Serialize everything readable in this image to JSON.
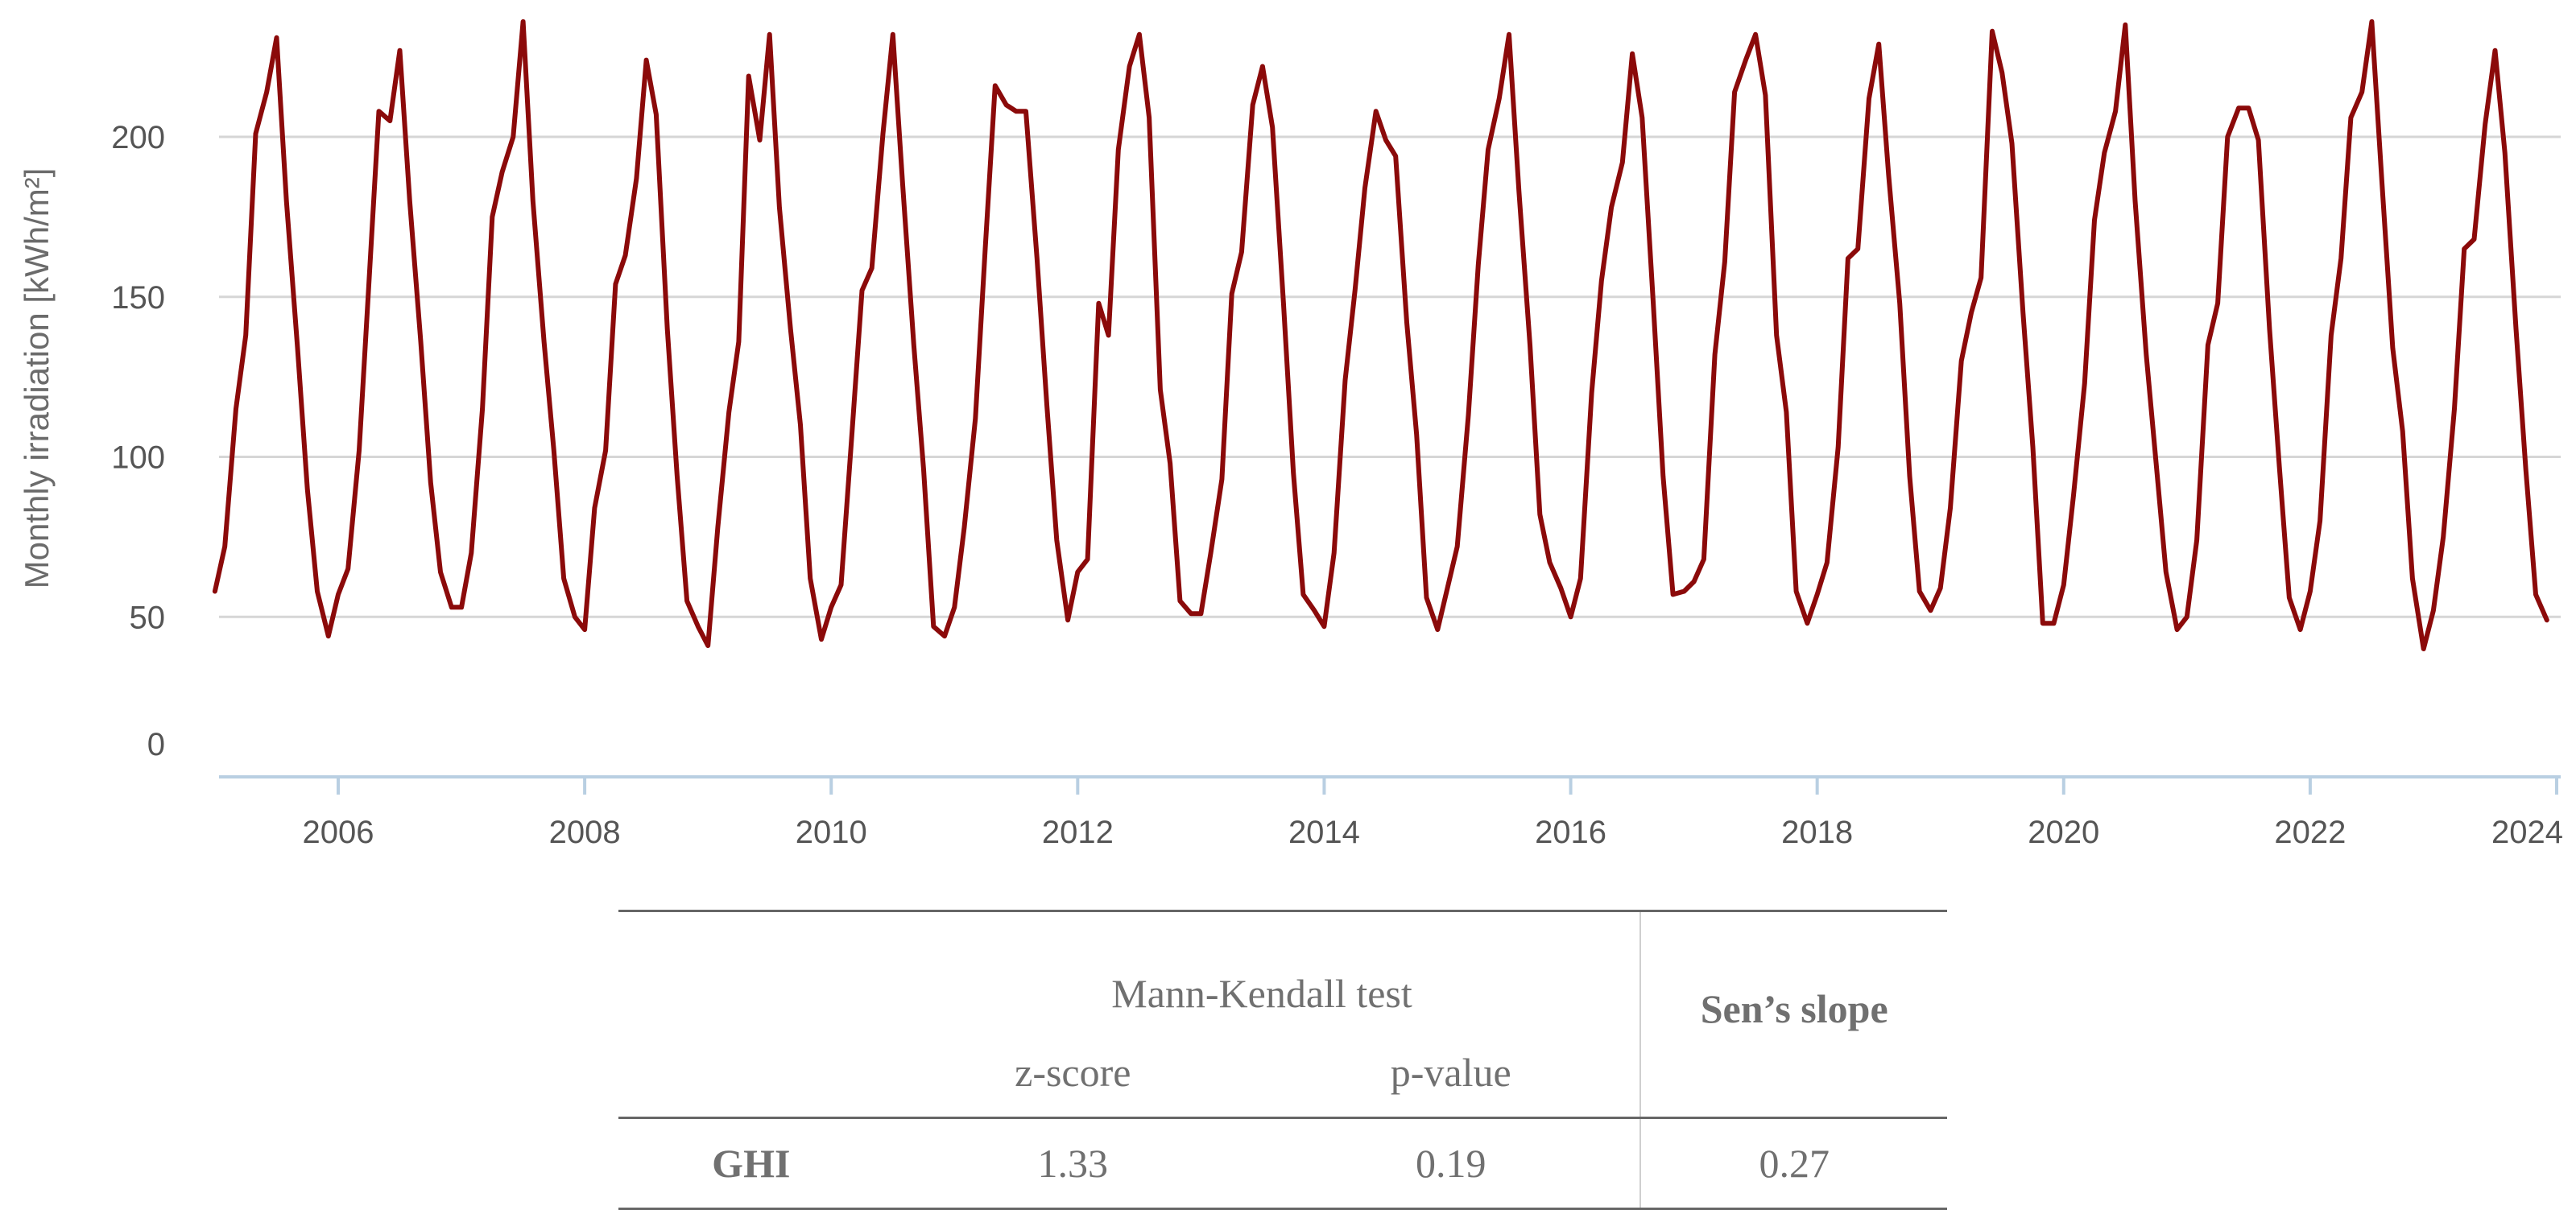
{
  "chart_data": {
    "type": "line",
    "title": "",
    "xlabel": "",
    "ylabel": "Monthly irradiation [kWh/m²]",
    "ylim": [
      0,
      240
    ],
    "yticks": [
      0,
      50,
      100,
      150,
      200
    ],
    "xlim": [
      2005.0,
      2024.1
    ],
    "xticks": [
      2006,
      2008,
      2010,
      2012,
      2014,
      2016,
      2018,
      2020,
      2022,
      2024
    ],
    "grid": true,
    "legend": "none",
    "line_color": "#8b0a0a",
    "series": [
      {
        "values": [
          {
            "x": 2005.0,
            "y": 58
          },
          {
            "x": 2005.08,
            "y": 72
          },
          {
            "x": 2005.17,
            "y": 115
          },
          {
            "x": 2005.25,
            "y": 138
          },
          {
            "x": 2005.33,
            "y": 201
          },
          {
            "x": 2005.42,
            "y": 214
          },
          {
            "x": 2005.5,
            "y": 231
          },
          {
            "x": 2005.58,
            "y": 180
          },
          {
            "x": 2005.67,
            "y": 134
          },
          {
            "x": 2005.75,
            "y": 90
          },
          {
            "x": 2005.83,
            "y": 58
          },
          {
            "x": 2005.92,
            "y": 44
          },
          {
            "x": 2006.0,
            "y": 57
          },
          {
            "x": 2006.08,
            "y": 65
          },
          {
            "x": 2006.17,
            "y": 102
          },
          {
            "x": 2006.25,
            "y": 155
          },
          {
            "x": 2006.33,
            "y": 208
          },
          {
            "x": 2006.42,
            "y": 205
          },
          {
            "x": 2006.5,
            "y": 227
          },
          {
            "x": 2006.58,
            "y": 180
          },
          {
            "x": 2006.67,
            "y": 136
          },
          {
            "x": 2006.75,
            "y": 92
          },
          {
            "x": 2006.83,
            "y": 64
          },
          {
            "x": 2006.92,
            "y": 53
          },
          {
            "x": 2007.0,
            "y": 53
          },
          {
            "x": 2007.08,
            "y": 70
          },
          {
            "x": 2007.17,
            "y": 115
          },
          {
            "x": 2007.25,
            "y": 175
          },
          {
            "x": 2007.33,
            "y": 189
          },
          {
            "x": 2007.42,
            "y": 200
          },
          {
            "x": 2007.5,
            "y": 236
          },
          {
            "x": 2007.58,
            "y": 180
          },
          {
            "x": 2007.67,
            "y": 136
          },
          {
            "x": 2007.75,
            "y": 102
          },
          {
            "x": 2007.83,
            "y": 62
          },
          {
            "x": 2007.92,
            "y": 50
          },
          {
            "x": 2008.0,
            "y": 46
          },
          {
            "x": 2008.08,
            "y": 84
          },
          {
            "x": 2008.17,
            "y": 102
          },
          {
            "x": 2008.25,
            "y": 154
          },
          {
            "x": 2008.33,
            "y": 163
          },
          {
            "x": 2008.42,
            "y": 187
          },
          {
            "x": 2008.5,
            "y": 224
          },
          {
            "x": 2008.58,
            "y": 207
          },
          {
            "x": 2008.67,
            "y": 140
          },
          {
            "x": 2008.75,
            "y": 94
          },
          {
            "x": 2008.83,
            "y": 55
          },
          {
            "x": 2008.92,
            "y": 47
          },
          {
            "x": 2009.0,
            "y": 41
          },
          {
            "x": 2009.08,
            "y": 78
          },
          {
            "x": 2009.17,
            "y": 114
          },
          {
            "x": 2009.25,
            "y": 136
          },
          {
            "x": 2009.33,
            "y": 219
          },
          {
            "x": 2009.42,
            "y": 199
          },
          {
            "x": 2009.5,
            "y": 232
          },
          {
            "x": 2009.58,
            "y": 178
          },
          {
            "x": 2009.67,
            "y": 140
          },
          {
            "x": 2009.75,
            "y": 110
          },
          {
            "x": 2009.83,
            "y": 62
          },
          {
            "x": 2009.92,
            "y": 43
          },
          {
            "x": 2010.0,
            "y": 53
          },
          {
            "x": 2010.08,
            "y": 60
          },
          {
            "x": 2010.17,
            "y": 108
          },
          {
            "x": 2010.25,
            "y": 152
          },
          {
            "x": 2010.33,
            "y": 159
          },
          {
            "x": 2010.42,
            "y": 201
          },
          {
            "x": 2010.5,
            "y": 232
          },
          {
            "x": 2010.58,
            "y": 185
          },
          {
            "x": 2010.67,
            "y": 135
          },
          {
            "x": 2010.75,
            "y": 96
          },
          {
            "x": 2010.83,
            "y": 47
          },
          {
            "x": 2010.92,
            "y": 44
          },
          {
            "x": 2011.0,
            "y": 53
          },
          {
            "x": 2011.08,
            "y": 78
          },
          {
            "x": 2011.17,
            "y": 112
          },
          {
            "x": 2011.25,
            "y": 165
          },
          {
            "x": 2011.33,
            "y": 216
          },
          {
            "x": 2011.42,
            "y": 210
          },
          {
            "x": 2011.5,
            "y": 208
          },
          {
            "x": 2011.58,
            "y": 208
          },
          {
            "x": 2011.67,
            "y": 162
          },
          {
            "x": 2011.75,
            "y": 116
          },
          {
            "x": 2011.83,
            "y": 74
          },
          {
            "x": 2011.92,
            "y": 49
          },
          {
            "x": 2012.0,
            "y": 64
          },
          {
            "x": 2012.08,
            "y": 68
          },
          {
            "x": 2012.17,
            "y": 148
          },
          {
            "x": 2012.25,
            "y": 138
          },
          {
            "x": 2012.33,
            "y": 196
          },
          {
            "x": 2012.42,
            "y": 222
          },
          {
            "x": 2012.5,
            "y": 232
          },
          {
            "x": 2012.58,
            "y": 206
          },
          {
            "x": 2012.67,
            "y": 121
          },
          {
            "x": 2012.75,
            "y": 98
          },
          {
            "x": 2012.83,
            "y": 55
          },
          {
            "x": 2012.92,
            "y": 51
          },
          {
            "x": 2013.0,
            "y": 51
          },
          {
            "x": 2013.08,
            "y": 70
          },
          {
            "x": 2013.17,
            "y": 93
          },
          {
            "x": 2013.25,
            "y": 151
          },
          {
            "x": 2013.33,
            "y": 164
          },
          {
            "x": 2013.42,
            "y": 210
          },
          {
            "x": 2013.5,
            "y": 222
          },
          {
            "x": 2013.58,
            "y": 203
          },
          {
            "x": 2013.67,
            "y": 148
          },
          {
            "x": 2013.75,
            "y": 95
          },
          {
            "x": 2013.83,
            "y": 57
          },
          {
            "x": 2013.92,
            "y": 52
          },
          {
            "x": 2014.0,
            "y": 47
          },
          {
            "x": 2014.08,
            "y": 70
          },
          {
            "x": 2014.17,
            "y": 124
          },
          {
            "x": 2014.25,
            "y": 152
          },
          {
            "x": 2014.33,
            "y": 184
          },
          {
            "x": 2014.42,
            "y": 208
          },
          {
            "x": 2014.5,
            "y": 199
          },
          {
            "x": 2014.58,
            "y": 194
          },
          {
            "x": 2014.67,
            "y": 142
          },
          {
            "x": 2014.75,
            "y": 107
          },
          {
            "x": 2014.83,
            "y": 56
          },
          {
            "x": 2014.92,
            "y": 46
          },
          {
            "x": 2015.0,
            "y": 59
          },
          {
            "x": 2015.08,
            "y": 72
          },
          {
            "x": 2015.17,
            "y": 113
          },
          {
            "x": 2015.25,
            "y": 160
          },
          {
            "x": 2015.33,
            "y": 196
          },
          {
            "x": 2015.42,
            "y": 212
          },
          {
            "x": 2015.5,
            "y": 232
          },
          {
            "x": 2015.58,
            "y": 183
          },
          {
            "x": 2015.67,
            "y": 135
          },
          {
            "x": 2015.75,
            "y": 82
          },
          {
            "x": 2015.83,
            "y": 67
          },
          {
            "x": 2015.92,
            "y": 59
          },
          {
            "x": 2016.0,
            "y": 50
          },
          {
            "x": 2016.08,
            "y": 62
          },
          {
            "x": 2016.17,
            "y": 120
          },
          {
            "x": 2016.25,
            "y": 155
          },
          {
            "x": 2016.33,
            "y": 178
          },
          {
            "x": 2016.42,
            "y": 192
          },
          {
            "x": 2016.5,
            "y": 226
          },
          {
            "x": 2016.58,
            "y": 206
          },
          {
            "x": 2016.67,
            "y": 148
          },
          {
            "x": 2016.75,
            "y": 94
          },
          {
            "x": 2016.83,
            "y": 57
          },
          {
            "x": 2016.92,
            "y": 58
          },
          {
            "x": 2017.0,
            "y": 61
          },
          {
            "x": 2017.08,
            "y": 68
          },
          {
            "x": 2017.17,
            "y": 132
          },
          {
            "x": 2017.25,
            "y": 161
          },
          {
            "x": 2017.33,
            "y": 214
          },
          {
            "x": 2017.42,
            "y": 224
          },
          {
            "x": 2017.5,
            "y": 232
          },
          {
            "x": 2017.58,
            "y": 213
          },
          {
            "x": 2017.67,
            "y": 138
          },
          {
            "x": 2017.75,
            "y": 114
          },
          {
            "x": 2017.83,
            "y": 58
          },
          {
            "x": 2017.92,
            "y": 48
          },
          {
            "x": 2018.0,
            "y": 57
          },
          {
            "x": 2018.08,
            "y": 67
          },
          {
            "x": 2018.17,
            "y": 103
          },
          {
            "x": 2018.25,
            "y": 162
          },
          {
            "x": 2018.33,
            "y": 165
          },
          {
            "x": 2018.42,
            "y": 212
          },
          {
            "x": 2018.5,
            "y": 229
          },
          {
            "x": 2018.58,
            "y": 188
          },
          {
            "x": 2018.67,
            "y": 148
          },
          {
            "x": 2018.75,
            "y": 94
          },
          {
            "x": 2018.83,
            "y": 58
          },
          {
            "x": 2018.92,
            "y": 52
          },
          {
            "x": 2019.0,
            "y": 59
          },
          {
            "x": 2019.08,
            "y": 84
          },
          {
            "x": 2019.17,
            "y": 130
          },
          {
            "x": 2019.25,
            "y": 145
          },
          {
            "x": 2019.33,
            "y": 156
          },
          {
            "x": 2019.42,
            "y": 233
          },
          {
            "x": 2019.5,
            "y": 220
          },
          {
            "x": 2019.58,
            "y": 198
          },
          {
            "x": 2019.67,
            "y": 145
          },
          {
            "x": 2019.75,
            "y": 103
          },
          {
            "x": 2019.83,
            "y": 48
          },
          {
            "x": 2019.92,
            "y": 48
          },
          {
            "x": 2020.0,
            "y": 60
          },
          {
            "x": 2020.08,
            "y": 88
          },
          {
            "x": 2020.17,
            "y": 123
          },
          {
            "x": 2020.25,
            "y": 174
          },
          {
            "x": 2020.33,
            "y": 195
          },
          {
            "x": 2020.42,
            "y": 208
          },
          {
            "x": 2020.5,
            "y": 235
          },
          {
            "x": 2020.58,
            "y": 180
          },
          {
            "x": 2020.67,
            "y": 132
          },
          {
            "x": 2020.75,
            "y": 98
          },
          {
            "x": 2020.83,
            "y": 64
          },
          {
            "x": 2020.92,
            "y": 46
          },
          {
            "x": 2021.0,
            "y": 50
          },
          {
            "x": 2021.08,
            "y": 74
          },
          {
            "x": 2021.17,
            "y": 135
          },
          {
            "x": 2021.25,
            "y": 148
          },
          {
            "x": 2021.33,
            "y": 200
          },
          {
            "x": 2021.42,
            "y": 209
          },
          {
            "x": 2021.5,
            "y": 209
          },
          {
            "x": 2021.58,
            "y": 199
          },
          {
            "x": 2021.67,
            "y": 140
          },
          {
            "x": 2021.75,
            "y": 97
          },
          {
            "x": 2021.83,
            "y": 56
          },
          {
            "x": 2021.92,
            "y": 46
          },
          {
            "x": 2022.0,
            "y": 58
          },
          {
            "x": 2022.08,
            "y": 80
          },
          {
            "x": 2022.17,
            "y": 138
          },
          {
            "x": 2022.25,
            "y": 162
          },
          {
            "x": 2022.33,
            "y": 206
          },
          {
            "x": 2022.42,
            "y": 214
          },
          {
            "x": 2022.5,
            "y": 236
          },
          {
            "x": 2022.58,
            "y": 187
          },
          {
            "x": 2022.67,
            "y": 134
          },
          {
            "x": 2022.75,
            "y": 108
          },
          {
            "x": 2022.83,
            "y": 62
          },
          {
            "x": 2022.92,
            "y": 40
          },
          {
            "x": 2023.0,
            "y": 52
          },
          {
            "x": 2023.08,
            "y": 75
          },
          {
            "x": 2023.17,
            "y": 115
          },
          {
            "x": 2023.25,
            "y": 165
          },
          {
            "x": 2023.33,
            "y": 168
          },
          {
            "x": 2023.42,
            "y": 204
          },
          {
            "x": 2023.5,
            "y": 227
          },
          {
            "x": 2023.58,
            "y": 195
          },
          {
            "x": 2023.67,
            "y": 140
          },
          {
            "x": 2023.75,
            "y": 96
          },
          {
            "x": 2023.83,
            "y": 57
          },
          {
            "x": 2023.92,
            "y": 49
          }
        ]
      }
    ]
  },
  "table": {
    "header_group": "Mann-Kendall  test",
    "header_sen": "Sen’s slope",
    "sub_z": "z-score",
    "sub_p": "p-value",
    "row_label": "GHI",
    "row_z": "1.33",
    "row_p": "0.19",
    "row_sen": "0.27"
  }
}
